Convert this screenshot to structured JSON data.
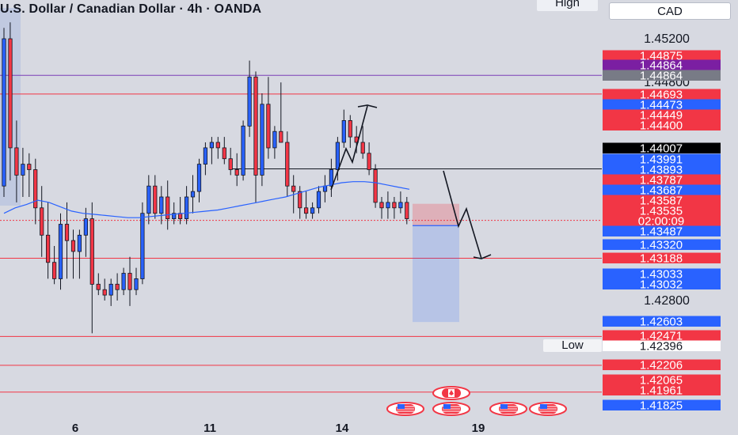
{
  "header": {
    "title": "U.S. Dollar / Canadian Dollar · 4h · OANDA",
    "high_label": "High",
    "low_label": "Low",
    "currency": "CAD"
  },
  "colors": {
    "background": "#d7d9e1",
    "bull": "#2962ff",
    "bear": "#f23645",
    "ma": "#2962ff",
    "black": "#000000",
    "purple": "#7b1fa2",
    "gray": "#787b86"
  },
  "chart_data": {
    "type": "candlestick",
    "symbol": "USDCAD",
    "timeframe": "4h",
    "y_axis": {
      "min": 1.4175,
      "max": 1.4535,
      "ticks": [
        "1.45200",
        "1.44800",
        "1.42800"
      ]
    },
    "x_axis": {
      "ticks": [
        "6",
        "11",
        "14",
        "19"
      ]
    },
    "price_labels": [
      {
        "value": "1.44875",
        "color": "red"
      },
      {
        "value": "1.44864",
        "color": "purple"
      },
      {
        "value": "1.44864",
        "color": "gray"
      },
      {
        "value": "1.44693",
        "color": "red"
      },
      {
        "value": "1.44473",
        "color": "blue"
      },
      {
        "value": "1.44449",
        "color": "red"
      },
      {
        "value": "1.44400",
        "color": "red"
      },
      {
        "value": "1.44007",
        "color": "black"
      },
      {
        "value": "1.43991",
        "color": "blue"
      },
      {
        "value": "1.43893",
        "color": "blue"
      },
      {
        "value": "1.43787",
        "color": "red"
      },
      {
        "value": "1.43687",
        "color": "blue"
      },
      {
        "value": "1.43587",
        "color": "red"
      },
      {
        "value": "1.43535",
        "color": "red"
      },
      {
        "value": "02:00:09",
        "color": "red"
      },
      {
        "value": "1.43487",
        "color": "blue"
      },
      {
        "value": "1.43320",
        "color": "blue"
      },
      {
        "value": "1.43188",
        "color": "red"
      },
      {
        "value": "1.43033",
        "color": "blue"
      },
      {
        "value": "1.43032",
        "color": "blue"
      },
      {
        "value": "1.42603",
        "color": "blue"
      },
      {
        "value": "1.42471",
        "color": "red"
      },
      {
        "value": "1.42396",
        "color": "white"
      },
      {
        "value": "1.42206",
        "color": "red"
      },
      {
        "value": "1.42065",
        "color": "red"
      },
      {
        "value": "1.41961",
        "color": "red"
      },
      {
        "value": "1.41825",
        "color": "blue"
      }
    ],
    "horizontal_levels": [
      {
        "value": 1.44864,
        "color": "purple"
      },
      {
        "value": 1.44693,
        "color": "red"
      },
      {
        "value": 1.43188,
        "color": "red"
      },
      {
        "value": 1.42471,
        "color": "red"
      },
      {
        "value": 1.42206,
        "color": "red"
      },
      {
        "value": 1.41961,
        "color": "red"
      },
      {
        "value": 1.44007,
        "color": "black"
      }
    ],
    "current_price": 1.43535,
    "candles": [
      [
        1.4385,
        1.453,
        1.4375,
        1.452
      ],
      [
        1.452,
        1.4535,
        1.439,
        1.442
      ],
      [
        1.442,
        1.4445,
        1.437,
        1.4395
      ],
      [
        1.4395,
        1.442,
        1.4375,
        1.4405
      ],
      [
        1.4405,
        1.4415,
        1.4375,
        1.44
      ],
      [
        1.44,
        1.441,
        1.435,
        1.4365
      ],
      [
        1.4365,
        1.4385,
        1.432,
        1.434
      ],
      [
        1.434,
        1.437,
        1.43,
        1.4315
      ],
      [
        1.4315,
        1.433,
        1.4295,
        1.43
      ],
      [
        1.43,
        1.436,
        1.429,
        1.435
      ],
      [
        1.435,
        1.437,
        1.43,
        1.4335
      ],
      [
        1.4335,
        1.4345,
        1.43,
        1.4325
      ],
      [
        1.4325,
        1.4345,
        1.43,
        1.434
      ],
      [
        1.434,
        1.4365,
        1.432,
        1.4355
      ],
      [
        1.4355,
        1.437,
        1.425,
        1.4295
      ],
      [
        1.4295,
        1.4305,
        1.4285,
        1.429
      ],
      [
        1.429,
        1.43,
        1.428,
        1.4285
      ],
      [
        1.4285,
        1.43,
        1.4275,
        1.4295
      ],
      [
        1.4295,
        1.4305,
        1.428,
        1.429
      ],
      [
        1.429,
        1.431,
        1.4285,
        1.4305
      ],
      [
        1.4305,
        1.432,
        1.4275,
        1.429
      ],
      [
        1.429,
        1.431,
        1.4285,
        1.43
      ],
      [
        1.43,
        1.437,
        1.4295,
        1.436
      ],
      [
        1.436,
        1.4395,
        1.435,
        1.4385
      ],
      [
        1.4385,
        1.4395,
        1.4355,
        1.436
      ],
      [
        1.436,
        1.4385,
        1.435,
        1.4375
      ],
      [
        1.4375,
        1.439,
        1.4345,
        1.4355
      ],
      [
        1.4355,
        1.437,
        1.435,
        1.436
      ],
      [
        1.436,
        1.4375,
        1.435,
        1.4355
      ],
      [
        1.4355,
        1.4385,
        1.435,
        1.4375
      ],
      [
        1.4375,
        1.4395,
        1.436,
        1.438
      ],
      [
        1.438,
        1.441,
        1.437,
        1.4405
      ],
      [
        1.4405,
        1.4425,
        1.4395,
        1.442
      ],
      [
        1.442,
        1.443,
        1.4405,
        1.4425
      ],
      [
        1.4425,
        1.443,
        1.441,
        1.442
      ],
      [
        1.442,
        1.443,
        1.4405,
        1.441
      ],
      [
        1.441,
        1.442,
        1.4395,
        1.44
      ],
      [
        1.44,
        1.4415,
        1.4385,
        1.4395
      ],
      [
        1.4395,
        1.4445,
        1.439,
        1.444
      ],
      [
        1.444,
        1.45,
        1.443,
        1.4485
      ],
      [
        1.4485,
        1.449,
        1.437,
        1.4395
      ],
      [
        1.4395,
        1.447,
        1.4385,
        1.446
      ],
      [
        1.446,
        1.4485,
        1.441,
        1.442
      ],
      [
        1.442,
        1.444,
        1.441,
        1.4435
      ],
      [
        1.4435,
        1.448,
        1.4425,
        1.4425
      ],
      [
        1.4425,
        1.4435,
        1.4375,
        1.4385
      ],
      [
        1.4385,
        1.4395,
        1.436,
        1.438
      ],
      [
        1.438,
        1.4385,
        1.4355,
        1.4365
      ],
      [
        1.4365,
        1.438,
        1.4355,
        1.436
      ],
      [
        1.436,
        1.437,
        1.4355,
        1.4365
      ],
      [
        1.4365,
        1.4385,
        1.436,
        1.438
      ],
      [
        1.438,
        1.4395,
        1.437,
        1.4385
      ],
      [
        1.4385,
        1.441,
        1.4375,
        1.44
      ],
      [
        1.44,
        1.443,
        1.439,
        1.4425
      ],
      [
        1.4425,
        1.4455,
        1.442,
        1.4445
      ],
      [
        1.4445,
        1.445,
        1.442,
        1.443
      ],
      [
        1.443,
        1.444,
        1.4415,
        1.4425
      ],
      [
        1.4425,
        1.444,
        1.441,
        1.4415
      ],
      [
        1.4415,
        1.4425,
        1.4395,
        1.44
      ],
      [
        1.44,
        1.4405,
        1.4365,
        1.437
      ],
      [
        1.437,
        1.4375,
        1.4355,
        1.4365
      ],
      [
        1.4365,
        1.438,
        1.4355,
        1.437
      ],
      [
        1.437,
        1.4375,
        1.4355,
        1.4365
      ],
      [
        1.4365,
        1.438,
        1.436,
        1.437
      ],
      [
        1.437,
        1.4375,
        1.435,
        1.4355
      ]
    ],
    "moving_average": [
      1.436,
      1.4365,
      1.4368,
      1.4372,
      1.437,
      1.4366,
      1.4362,
      1.436,
      1.4359,
      1.4358,
      1.4357,
      1.4356,
      1.4356,
      1.4357,
      1.4358,
      1.4359,
      1.436,
      1.4361,
      1.4362,
      1.4363,
      1.4365,
      1.4367,
      1.4369,
      1.4371,
      1.4373,
      1.4375,
      1.4378,
      1.4381,
      1.4384,
      1.4386,
      1.4388,
      1.4389,
      1.4389,
      1.4388,
      1.4386,
      1.4384,
      1.4382
    ],
    "position_tool": {
      "entry": 1.43487,
      "stop": 1.43687,
      "target": 1.42603
    },
    "projection": [
      [
        1.4395,
        1.4375
      ],
      [
        1.4365,
        1.435
      ],
      [
        1.433
      ]
    ],
    "calendar_events": [
      "CAD",
      "USD",
      "USD",
      "USD",
      "USD"
    ]
  }
}
